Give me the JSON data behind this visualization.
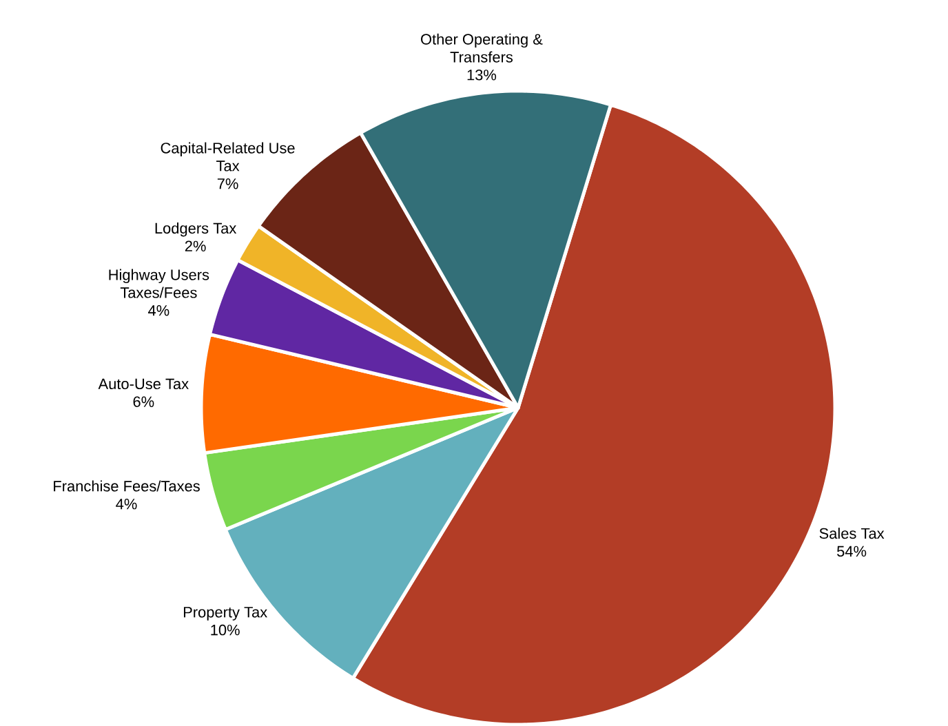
{
  "chart_data": {
    "type": "pie",
    "categories": [
      "Sales Tax",
      "Property Tax",
      "Franchise Fees/Taxes",
      "Auto-Use Tax",
      "Highway Users Taxes/Fees",
      "Lodgers Tax",
      "Capital-Related Use Tax",
      "Other Operating & Transfers"
    ],
    "values": [
      54,
      10,
      4,
      6,
      4,
      2,
      7,
      13
    ],
    "value_labels": [
      "54%",
      "10%",
      "4%",
      "6%",
      "4%",
      "2%",
      "7%",
      "13%"
    ],
    "colors": [
      "#b33d26",
      "#63b0bd",
      "#7ad64d",
      "#ff6a00",
      "#6027a3",
      "#f0b428",
      "#6b2516",
      "#336f78"
    ]
  }
}
